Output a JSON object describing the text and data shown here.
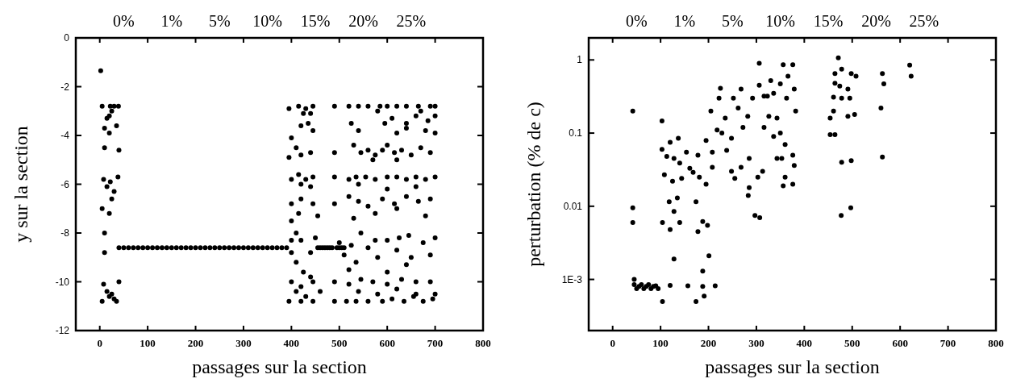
{
  "chart_data": [
    {
      "type": "scatter",
      "xlabel": "passages sur la section",
      "ylabel": "y sur la section",
      "xlim": [
        -50,
        800
      ],
      "xticks": [
        0,
        100,
        200,
        300,
        400,
        500,
        600,
        700,
        800
      ],
      "ylim": [
        -12,
        0
      ],
      "yticks": [
        0,
        -2,
        -4,
        -6,
        -8,
        -10,
        -12
      ],
      "annotations": [
        "0%",
        "1%",
        "5%",
        "10%",
        "15%",
        "20%",
        "25%"
      ],
      "marker": "circle",
      "x": [
        2,
        5,
        22,
        39,
        20,
        25,
        30,
        15,
        10,
        20,
        35,
        10,
        40,
        8,
        22,
        38,
        15,
        30,
        25,
        5,
        20,
        10,
        10,
        8,
        25,
        40,
        5,
        20,
        30,
        35,
        15,
        40,
        50,
        60,
        70,
        80,
        90,
        100,
        110,
        120,
        130,
        140,
        150,
        160,
        170,
        180,
        190,
        200,
        210,
        220,
        230,
        240,
        250,
        260,
        270,
        280,
        290,
        300,
        310,
        320,
        330,
        340,
        350,
        360,
        370,
        380,
        390,
        455,
        460,
        465,
        470,
        475,
        480,
        485,
        495,
        500,
        505,
        510,
        560,
        395,
        415,
        430,
        445,
        425,
        440,
        420,
        435,
        445,
        400,
        410,
        395,
        420,
        440,
        490,
        520,
        540,
        560,
        585,
        600,
        620,
        640,
        665,
        690,
        700,
        525,
        540,
        595,
        610,
        580,
        640,
        660,
        670,
        685,
        700,
        680,
        700,
        620,
        640,
        490,
        530,
        545,
        560,
        575,
        590,
        600,
        615,
        630,
        650,
        670,
        690,
        570,
        620,
        400,
        415,
        430,
        445,
        490,
        520,
        535,
        555,
        575,
        600,
        620,
        640,
        660,
        680,
        700,
        420,
        440,
        540,
        600,
        660,
        400,
        420,
        445,
        490,
        520,
        540,
        560,
        590,
        615,
        640,
        665,
        690,
        400,
        415,
        455,
        530,
        575,
        620,
        680,
        410,
        400,
        420,
        450,
        500,
        525,
        545,
        575,
        600,
        625,
        645,
        675,
        700,
        400,
        410,
        440,
        510,
        535,
        580,
        620,
        650,
        690,
        425,
        440,
        520,
        600,
        640,
        400,
        420,
        445,
        490,
        520,
        545,
        570,
        600,
        630,
        660,
        690,
        410,
        430,
        460,
        540,
        580,
        620,
        660,
        700,
        395,
        420,
        445,
        490,
        515,
        535,
        560,
        590,
        610,
        635,
        655,
        675,
        695
      ],
      "series": [
        {
          "color": "#000000",
          "values": [
            -1.35,
            -2.8,
            -2.8,
            -2.8,
            -3.2,
            -3.0,
            -2.8,
            -3.3,
            -3.7,
            -3.9,
            -3.6,
            -4.5,
            -4.6,
            -5.8,
            -5.9,
            -5.7,
            -6.1,
            -6.3,
            -6.6,
            -7.0,
            -7.2,
            -8.0,
            -8.8,
            -10.1,
            -10.5,
            -10.0,
            -10.8,
            -10.6,
            -10.7,
            -10.8,
            -10.4,
            -8.6,
            -8.6,
            -8.6,
            -8.6,
            -8.6,
            -8.6,
            -8.6,
            -8.6,
            -8.6,
            -8.6,
            -8.6,
            -8.6,
            -8.6,
            -8.6,
            -8.6,
            -8.6,
            -8.6,
            -8.6,
            -8.6,
            -8.6,
            -8.6,
            -8.6,
            -8.6,
            -8.6,
            -8.6,
            -8.6,
            -8.6,
            -8.6,
            -8.6,
            -8.6,
            -8.6,
            -8.6,
            -8.6,
            -8.6,
            -8.6,
            -8.6,
            -8.6,
            -8.6,
            -8.6,
            -8.6,
            -8.6,
            -8.6,
            -8.6,
            -8.6,
            -8.6,
            -8.6,
            -8.6,
            -8.6,
            -2.9,
            -2.8,
            -2.9,
            -2.8,
            -3.1,
            -3.1,
            -3.6,
            -3.5,
            -3.8,
            -4.1,
            -4.5,
            -4.9,
            -4.8,
            -4.7,
            -2.8,
            -2.8,
            -2.8,
            -2.8,
            -2.8,
            -2.8,
            -2.8,
            -2.8,
            -2.8,
            -2.8,
            -2.8,
            -3.5,
            -3.8,
            -3.5,
            -3.3,
            -3.0,
            -3.5,
            -3.2,
            -3.0,
            -3.4,
            -3.2,
            -3.8,
            -3.9,
            -3.9,
            -3.7,
            -4.7,
            -4.4,
            -4.7,
            -4.6,
            -4.8,
            -4.6,
            -4.4,
            -4.7,
            -4.6,
            -4.8,
            -4.5,
            -4.7,
            -5.0,
            -5.0,
            -5.8,
            -5.6,
            -5.8,
            -5.7,
            -5.7,
            -5.8,
            -5.7,
            -5.7,
            -5.8,
            -5.7,
            -5.7,
            -5.8,
            -5.7,
            -5.8,
            -5.7,
            -6.0,
            -6.1,
            -6.0,
            -6.2,
            -6.1,
            -6.8,
            -6.6,
            -6.8,
            -6.8,
            -6.5,
            -6.7,
            -6.9,
            -6.6,
            -6.8,
            -6.5,
            -6.7,
            -6.6,
            -7.5,
            -7.2,
            -7.3,
            -7.4,
            -7.2,
            -7.0,
            -7.3,
            -8.0,
            -8.3,
            -8.3,
            -8.2,
            -8.4,
            -8.5,
            -8.0,
            -8.3,
            -8.3,
            -8.2,
            -8.1,
            -8.4,
            -8.2,
            -8.8,
            -9.2,
            -8.8,
            -8.9,
            -9.2,
            -9.0,
            -8.7,
            -9.0,
            -8.9,
            -9.6,
            -9.8,
            -9.5,
            -9.6,
            -9.3,
            -10.0,
            -10.2,
            -10.0,
            -10.0,
            -10.1,
            -9.9,
            -10.0,
            -10.1,
            -9.9,
            -10.0,
            -10.0,
            -10.4,
            -10.6,
            -10.4,
            -10.4,
            -10.5,
            -10.3,
            -10.5,
            -10.5,
            -10.8,
            -10.8,
            -10.8,
            -10.8,
            -10.8,
            -10.8,
            -10.8,
            -10.8,
            -10.7,
            -10.8,
            -10.6,
            -10.8,
            -10.7
          ]
        }
      ]
    },
    {
      "type": "scatter",
      "xlabel": "passages sur la section",
      "ylabel": "perturbation (% de c)",
      "xlim": [
        -50,
        800
      ],
      "xticks": [
        0,
        100,
        200,
        300,
        400,
        500,
        600,
        700,
        800
      ],
      "ylim": [
        0.0002,
        2
      ],
      "yticks": [
        {
          "value": 1,
          "label": "1"
        },
        {
          "value": 0.1,
          "label": "0.1"
        },
        {
          "value": 0.01,
          "label": "0.01"
        },
        {
          "value": 0.001,
          "label": "1E-3"
        }
      ],
      "log": "y",
      "annotations": [
        "0%",
        "1%",
        "5%",
        "10%",
        "15%",
        "20%",
        "25%"
      ],
      "marker": "circle",
      "x": [
        42,
        103,
        103,
        137,
        120,
        113,
        128,
        140,
        154,
        161,
        168,
        178,
        181,
        108,
        125,
        195,
        144,
        195,
        205,
        225,
        222,
        235,
        252,
        268,
        218,
        228,
        248,
        272,
        262,
        282,
        208,
        208,
        238,
        248,
        255,
        268,
        285,
        285,
        292,
        306,
        306,
        330,
        316,
        323,
        336,
        350,
        356,
        376,
        366,
        379,
        382,
        363,
        326,
        343,
        316,
        336,
        350,
        360,
        343,
        353,
        376,
        379,
        360,
        356,
        376,
        303,
        313,
        471,
        464,
        478,
        464,
        474,
        461,
        478,
        491,
        498,
        495,
        508,
        454,
        461,
        454,
        464,
        491,
        505,
        478,
        498,
        563,
        566,
        560,
        563,
        620,
        623,
        42,
        42,
        104,
        120,
        118,
        135,
        128,
        140,
        174,
        178,
        188,
        198,
        128,
        201,
        188,
        191,
        174,
        120,
        157,
        188,
        214,
        104,
        283,
        297,
        307,
        477,
        497,
        45,
        50,
        55,
        60,
        65,
        70,
        75,
        80,
        85,
        90,
        95,
        45
      ],
      "series": [
        {
          "color": "#000000",
          "values": [
            0.2,
            0.147,
            0.06,
            0.085,
            0.075,
            0.048,
            0.045,
            0.039,
            0.055,
            0.033,
            0.029,
            0.05,
            0.025,
            0.027,
            0.022,
            0.02,
            0.024,
            0.079,
            0.2,
            0.41,
            0.3,
            0.16,
            0.3,
            0.4,
            0.11,
            0.1,
            0.085,
            0.12,
            0.22,
            0.17,
            0.055,
            0.034,
            0.058,
            0.03,
            0.024,
            0.034,
            0.045,
            0.018,
            0.3,
            0.9,
            0.45,
            0.52,
            0.32,
            0.32,
            0.35,
            0.47,
            0.86,
            0.86,
            0.6,
            0.4,
            0.2,
            0.3,
            0.17,
            0.16,
            0.12,
            0.09,
            0.1,
            0.07,
            0.045,
            0.045,
            0.05,
            0.036,
            0.025,
            0.019,
            0.02,
            0.025,
            0.03,
            1.07,
            0.65,
            0.75,
            0.48,
            0.44,
            0.31,
            0.3,
            0.4,
            0.65,
            0.3,
            0.6,
            0.16,
            0.2,
            0.095,
            0.095,
            0.17,
            0.18,
            0.04,
            0.042,
            0.65,
            0.47,
            0.22,
            0.047,
            0.85,
            0.6,
            0.0095,
            0.006,
            0.006,
            0.0048,
            0.0115,
            0.013,
            0.0085,
            0.006,
            0.0115,
            0.0045,
            0.0062,
            0.0055,
            0.0019,
            0.0021,
            0.0013,
            0.00059,
            0.0005,
            0.00083,
            0.00082,
            0.0008,
            0.00082,
            0.0005,
            0.014,
            0.0075,
            0.007,
            0.0075,
            0.0095,
            0.00085,
            0.00075,
            0.0008,
            0.00085,
            0.00075,
            0.0008,
            0.00085,
            0.00075,
            0.0008,
            0.00082,
            0.00075,
            0.001
          ]
        }
      ]
    }
  ]
}
